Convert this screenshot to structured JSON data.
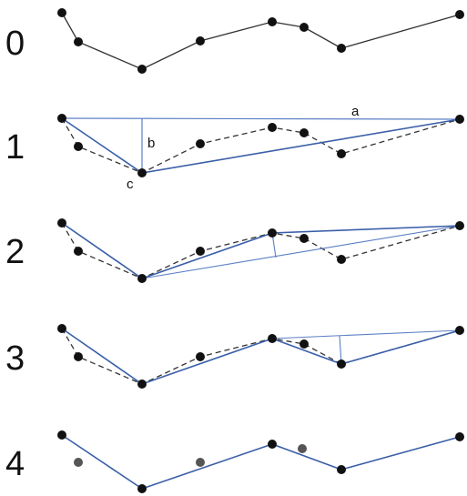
{
  "colors": {
    "original_line": "#333333",
    "dashed_line": "#333333",
    "simplified_line": "#3a5fa8",
    "construction_line": "#5b7fc4",
    "point": "#111111",
    "removed_point": "#555555"
  },
  "steps": [
    {
      "number": "0"
    },
    {
      "number": "1",
      "annotations": {
        "a": "a",
        "b": "b",
        "c": "c"
      }
    },
    {
      "number": "2"
    },
    {
      "number": "3"
    },
    {
      "number": "4"
    }
  ]
}
